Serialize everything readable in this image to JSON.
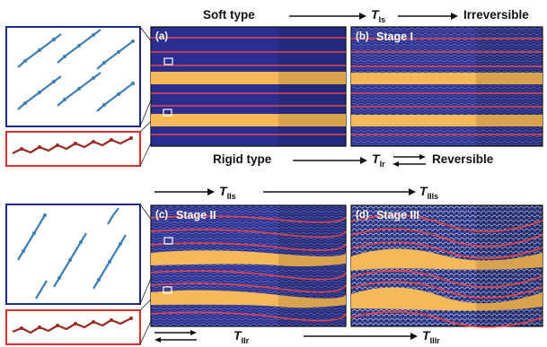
{
  "top": {
    "soft_label": "Soft type",
    "t_is": "T",
    "t_is_sub": "Is",
    "irreversible_label": "Irreversible",
    "rigid_label": "Rigid type",
    "t_ir": "T",
    "t_ir_sub": "Ir",
    "reversible_label": "Reversible"
  },
  "bottom": {
    "t_iis": "T",
    "t_iis_sub": "IIs",
    "t_iiis": "T",
    "t_iiis_sub": "IIIs",
    "t_iir": "T",
    "t_iir_sub": "IIr",
    "t_iiir": "T",
    "t_iiir_sub": "IIIr"
  },
  "panels": [
    {
      "tag": "(a)",
      "stage": ""
    },
    {
      "tag": "(b)",
      "stage": "Stage I"
    },
    {
      "tag": "(c)",
      "stage": "Stage II"
    },
    {
      "tag": "(d)",
      "stage": "Stage III"
    }
  ],
  "colors": {
    "navy": "#2a2f8f",
    "orange": "#f6b95a",
    "red_line": "#e8434a",
    "blue_frame": "#1d2a86",
    "red_frame": "#d92e2e",
    "molecule_blue": "#3f7fb5",
    "molecule_red": "#9b2a24"
  }
}
